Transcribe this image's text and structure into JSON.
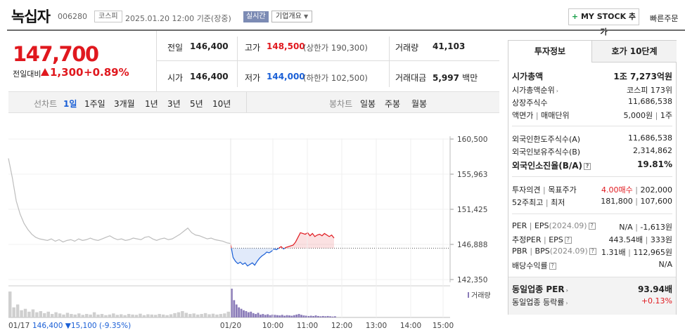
{
  "header": {
    "stock_name": "녹십자",
    "stock_code": "006280",
    "market": "코스피",
    "datetime": "2025.01.20 12:00",
    "basis": "기준(장중)",
    "realtime": "실시간",
    "company_overview": "기업개요",
    "my_stock_label": "MY STOCK 추가",
    "quick_order": "빠른주문"
  },
  "price": {
    "current": "147,700",
    "change_label": "전일대비",
    "change": "1,300",
    "change_pct": "+0.89%"
  },
  "quote": {
    "prev_close_label": "전일",
    "prev_close": "146,400",
    "high_label": "고가",
    "high": "148,500",
    "upper_limit": "(상한가 190,300)",
    "volume_label": "거래량",
    "volume": "41,103",
    "open_label": "시가",
    "open": "146,400",
    "low_label": "저가",
    "low": "144,000",
    "lower_limit": "(하한가 102,500)",
    "amount_label": "거래대금",
    "amount": "5,997",
    "amount_unit": "백만"
  },
  "periods": {
    "line_label": "선차트",
    "line_items": [
      "1일",
      "1주일",
      "3개월",
      "1년",
      "3년",
      "5년",
      "10년"
    ],
    "selected": "1일",
    "candle_label": "봉차트",
    "candle_items": [
      "일봉",
      "주봉",
      "월봉"
    ]
  },
  "chart_data": {
    "type": "line",
    "y_ticks": [
      "160,500",
      "155,963",
      "151,425",
      "146,888",
      "142,350"
    ],
    "ylim": [
      142350,
      160500
    ],
    "reference_price": 146400,
    "volume_legend": "거래량",
    "x_ticks": [
      "01/17",
      "01/20",
      "10:00",
      "11:00",
      "12:00",
      "13:00",
      "14:00",
      "15:00"
    ],
    "prev_day_summary": {
      "date": "01/17",
      "close": "146,400",
      "change": "▼15,100",
      "change_pct": "(-9.35%)"
    },
    "series": [
      {
        "session": "01/17",
        "values": [
          158000,
          155500,
          152500,
          150800,
          149600,
          148800,
          148200,
          147800,
          147600,
          147500,
          147400,
          147600,
          147300,
          147500,
          147200,
          147400,
          147500,
          147300,
          147600,
          147400,
          147500,
          147700,
          147500,
          147400,
          147600,
          147800,
          148000,
          147700,
          147500,
          147600,
          147400,
          147500,
          147700,
          147600,
          147500,
          147800,
          147900,
          147600,
          147400,
          147600,
          147700,
          147500,
          147600,
          147900,
          148200,
          148600,
          149000,
          148400,
          148100,
          148000,
          147800,
          147600,
          147700,
          147500,
          147400,
          147300,
          147100,
          147000
        ]
      },
      {
        "session": "01/20",
        "values": [
          146900,
          145200,
          144700,
          144400,
          144600,
          144300,
          144500,
          144100,
          144300,
          144500,
          144200,
          144700,
          145100,
          145400,
          145600,
          145900,
          145800,
          146000,
          146300,
          146200,
          146400,
          146600,
          146300,
          146500,
          146600,
          146700,
          146800,
          147200,
          147800,
          148400,
          148300,
          148200,
          148400,
          148000,
          148300,
          147900,
          148100,
          148200,
          148000,
          148300,
          148100,
          147900,
          148100,
          147700
        ]
      }
    ],
    "volume": {
      "01/17": [
        0.9,
        0.35,
        0.45,
        0.25,
        0.3,
        0.2,
        0.28,
        0.18,
        0.22,
        0.15,
        0.2,
        0.12,
        0.18,
        0.14,
        0.1,
        0.16,
        0.12,
        0.1,
        0.14,
        0.09,
        0.12,
        0.1,
        0.18,
        0.1,
        0.12,
        0.08,
        0.1,
        0.14,
        0.09,
        0.11,
        0.08,
        0.12,
        0.1,
        0.09,
        0.13,
        0.08,
        0.11,
        0.1,
        0.09,
        0.12,
        0.1,
        0.08,
        0.11,
        0.15,
        0.18,
        0.22,
        0.16,
        0.12,
        0.14,
        0.1,
        0.12,
        0.15,
        0.11,
        0.13,
        0.1,
        0.12,
        0.14,
        0.2
      ],
      "01/20": [
        1.0,
        0.6,
        0.45,
        0.35,
        0.3,
        0.25,
        0.22,
        0.18,
        0.2,
        0.15,
        0.12,
        0.16,
        0.1,
        0.12,
        0.09,
        0.11,
        0.08,
        0.1,
        0.09,
        0.08,
        0.07,
        0.09,
        0.06,
        0.08,
        0.07,
        0.06,
        0.08,
        0.1,
        0.12,
        0.09,
        0.07,
        0.06,
        0.05,
        0.06,
        0.05,
        0.07,
        0.05,
        0.04,
        0.05,
        0.04,
        0.05,
        0.04,
        0.03,
        0.04
      ]
    }
  },
  "panel": {
    "tab_invest": "투자정보",
    "tab_hoga": "호가 10단계",
    "market_cap_label": "시가총액",
    "market_cap": "1조 7,273억원",
    "market_cap_rank_label": "시가총액순위",
    "market_cap_rank": "코스피 173위",
    "shares_label": "상장주식수",
    "shares": "11,686,538",
    "par_label": "액면가",
    "unit_label": "매매단위",
    "par": "5,000원",
    "unit": "1주",
    "foreign_limit_label": "외국인한도주식수(A)",
    "foreign_limit": "11,686,538",
    "foreign_hold_label": "외국인보유주식수(B)",
    "foreign_hold": "2,314,862",
    "foreign_ratio_label": "외국인소진율(B/A)",
    "foreign_ratio": "19.81%",
    "opinion_label": "투자의견",
    "target_label": "목표주가",
    "opinion": "4.00매수",
    "target": "202,000",
    "week52_high_label": "52주최고",
    "week52_low_label": "최저",
    "week52_high": "181,800",
    "week52_low": "107,600",
    "per_label": "PER",
    "eps_label": "EPS",
    "eps_period": "(2024.09)",
    "per": "N/A",
    "eps": "-1,613원",
    "est_per_label": "추정PER",
    "est_eps_label": "EPS",
    "est_per": "443.54배",
    "est_eps": "333원",
    "pbr_label": "PBR",
    "bps_label": "BPS",
    "bps_period": "(2024.09)",
    "pbr": "1.31배",
    "bps": "112,965원",
    "dividend_label": "배당수익률",
    "dividend": "N/A",
    "industry_per_label": "동일업종 PER",
    "industry_per": "93.94배",
    "industry_chg_label": "동일업종 등락률",
    "industry_chg": "+0.13%",
    "qmark": "?"
  },
  "colors": {
    "up": "#e0181e",
    "down": "#1a5fd6",
    "prev_line": "#bdbdbd",
    "volume_today": "#8a7bb8"
  }
}
